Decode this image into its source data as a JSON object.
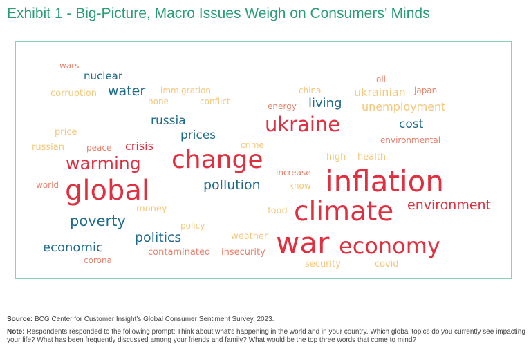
{
  "title": "Exhibit 1 - Big-Picture, Macro Issues Weigh on Consumers’ Minds",
  "chart_data": {
    "type": "wordcloud",
    "words": [
      {
        "text": "wars",
        "color": "#e8826c"
      },
      {
        "text": "nuclear",
        "color": "#1e6b8a"
      },
      {
        "text": "oil",
        "color": "#e8826c"
      },
      {
        "text": "corruption",
        "color": "#f5c77a"
      },
      {
        "text": "water",
        "color": "#1e6b8a"
      },
      {
        "text": "immigration",
        "color": "#f5c77a"
      },
      {
        "text": "china",
        "color": "#f5c77a"
      },
      {
        "text": "ukrainian",
        "color": "#f5c77a"
      },
      {
        "text": "japan",
        "color": "#e8826c"
      },
      {
        "text": "none",
        "color": "#f5c77a"
      },
      {
        "text": "conflict",
        "color": "#f5c77a"
      },
      {
        "text": "energy",
        "color": "#e8826c"
      },
      {
        "text": "living",
        "color": "#1e6b8a"
      },
      {
        "text": "unemployment",
        "color": "#f5c77a"
      },
      {
        "text": "russia",
        "color": "#1e6b8a"
      },
      {
        "text": "ukraine",
        "color": "#e03040"
      },
      {
        "text": "cost",
        "color": "#1e6b8a"
      },
      {
        "text": "price",
        "color": "#f5c77a"
      },
      {
        "text": "prices",
        "color": "#1e6b8a"
      },
      {
        "text": "environmental",
        "color": "#e8826c"
      },
      {
        "text": "russian",
        "color": "#f5c77a"
      },
      {
        "text": "peace",
        "color": "#e8826c"
      },
      {
        "text": "crisis",
        "color": "#e03040"
      },
      {
        "text": "crime",
        "color": "#f5c77a"
      },
      {
        "text": "warming",
        "color": "#e03040"
      },
      {
        "text": "change",
        "color": "#e03040"
      },
      {
        "text": "high",
        "color": "#f5c77a"
      },
      {
        "text": "health",
        "color": "#f5c77a"
      },
      {
        "text": "increase",
        "color": "#e8826c"
      },
      {
        "text": "world",
        "color": "#e8826c"
      },
      {
        "text": "global",
        "color": "#e03040"
      },
      {
        "text": "pollution",
        "color": "#1e6b8a"
      },
      {
        "text": "know",
        "color": "#f5c77a"
      },
      {
        "text": "inflation",
        "color": "#e03040"
      },
      {
        "text": "money",
        "color": "#f5c77a"
      },
      {
        "text": "environment",
        "color": "#e03040"
      },
      {
        "text": "food",
        "color": "#f5c77a"
      },
      {
        "text": "climate",
        "color": "#e03040"
      },
      {
        "text": "poverty",
        "color": "#1e6b8a"
      },
      {
        "text": "policy",
        "color": "#f5c77a"
      },
      {
        "text": "politics",
        "color": "#1e6b8a"
      },
      {
        "text": "weather",
        "color": "#f5c77a"
      },
      {
        "text": "war",
        "color": "#e03040"
      },
      {
        "text": "economic",
        "color": "#1e6b8a"
      },
      {
        "text": "economy",
        "color": "#e03040"
      },
      {
        "text": "contaminated",
        "color": "#e8826c"
      },
      {
        "text": "insecurity",
        "color": "#e8826c"
      },
      {
        "text": "corona",
        "color": "#e8826c"
      },
      {
        "text": "security",
        "color": "#f5c77a"
      },
      {
        "text": "covid",
        "color": "#f5c77a"
      }
    ]
  },
  "source": {
    "label": "Source:",
    "text": " BCG Center for Customer Insight’s Global Consumer Sentiment Survey, 2023."
  },
  "note": {
    "label": "Note:",
    "text": " Respondents responded to the following prompt: Think about what’s happening in the world and in your country. Which global topics do you currently see impacting your life? What has been frequently discussed among your friends and family? What would be the top three words that come to mind?"
  }
}
